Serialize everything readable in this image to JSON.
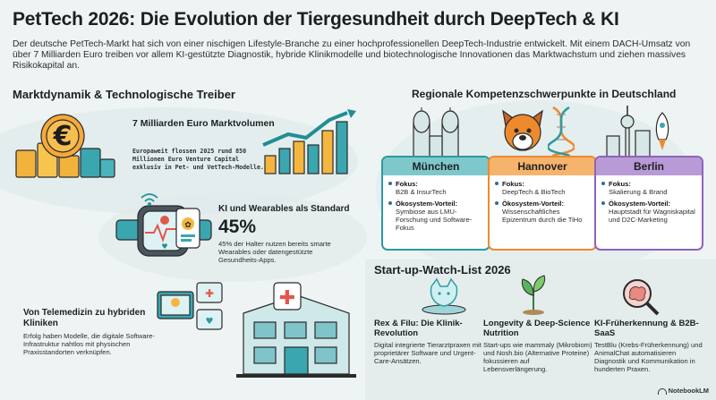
{
  "title": "PetTech 2026: Die Evolution der Tiergesundheit durch DeepTech & KI",
  "intro": "Der deutsche PetTech-Markt hat sich von einer nischigen Lifestyle-Branche zu einer hochprofessionellen DeepTech-Industrie entwickelt. Mit einem DACH-Umsatz von über 7 Milliarden Euro treiben vor allem KI-gestützte Diagnostik, hybride Klinikmodelle und biotechnologische Innovationen das Marktwachstum und ziehen massives Risikokapital an.",
  "left_section": {
    "heading": "Marktdynamik & Technologische Treiber",
    "market": {
      "title": "7 Milliarden Euro Marktvolumen",
      "text": "Europaweit flossen 2025 rund 850 Millionen Euro Venture Capital exklusiv in Pet- und VetTech-Modelle."
    },
    "ai": {
      "title": "KI und Wearables als Standard",
      "stat": "45%",
      "text": "45% der Halter nutzen bereits smarte Wearables oder datengestützte Gesundheits-Apps."
    },
    "telemed": {
      "title": "Von Telemedizin zu hybriden Kliniken",
      "text": "Erfolg haben Modelle, die digitale Software-Infrastruktur nahtlos mit physischen Praxisstandorten verknüpfen."
    }
  },
  "regions": {
    "heading": "Regionale Kompetenzschwerpunkte in Deutschland",
    "cities": [
      {
        "name": "München",
        "color": "#2b9aa0",
        "fokus_label": "Fokus:",
        "fokus": "B2B & InsurTech",
        "vorteil_label": "Ökosystem-Vorteil:",
        "vorteil": "Symbiose aus LMU-Forschung und Software-Fokus"
      },
      {
        "name": "Hannover",
        "color": "#ee8a2e",
        "fokus_label": "Fokus:",
        "fokus": "DeepTech & BioTech",
        "vorteil_label": "Ökosystem-Vorteil:",
        "vorteil": "Wissenschaftliches Epizentrum durch die TiHo"
      },
      {
        "name": "Berlin",
        "color": "#8e63b8",
        "fokus_label": "Fokus:",
        "fokus": "Skalierung & Brand",
        "vorteil_label": "Ökosystem-Vorteil:",
        "vorteil": "Hauptstadt für Wagniskapital und D2C-Marketing"
      }
    ]
  },
  "watchlist": {
    "heading": "Start-up-Watch-List 2026",
    "items": [
      {
        "title": "Rex & Filu: Die Klinik-Revolution",
        "text": "Digital integrierte Tierarztpraxen mit proprietärer Software und Urgent-Care-Ansätzen."
      },
      {
        "title": "Longevity & Deep-Science Nutrition",
        "text": "Start-ups wie mammaly (Mikrobiom) und Nosh.bio (Alternative Proteine) fokussieren auf Lebensverlängerung."
      },
      {
        "title": "KI-Früherkennung & B2B-SaaS",
        "text": "TestBlu (Krebs-Früherkennung) und AnimalChat automatisieren Diagnostik und Kommunikation in hunderten Praxen."
      }
    ]
  },
  "footer": "NotebookLM",
  "icons": [
    "euro-coin-stack-icon",
    "growth-chart-icon",
    "smartwatch-icon",
    "wifi-signal-icon",
    "phone-app-icon",
    "telemedicine-screen-icon",
    "vet-clinic-building-icon",
    "munich-frauenkirche-icon",
    "dog-head-icon",
    "dna-helix-icon",
    "berlin-tv-tower-icon",
    "rocket-icon",
    "hologram-pet-icon",
    "sprout-icon",
    "magnifier-brain-icon",
    "notebooklm-logo-icon"
  ],
  "colors": {
    "teal": "#2b9aa0",
    "orange": "#ee8a2e",
    "purple": "#8e63b8",
    "text": "#1c1f24"
  }
}
